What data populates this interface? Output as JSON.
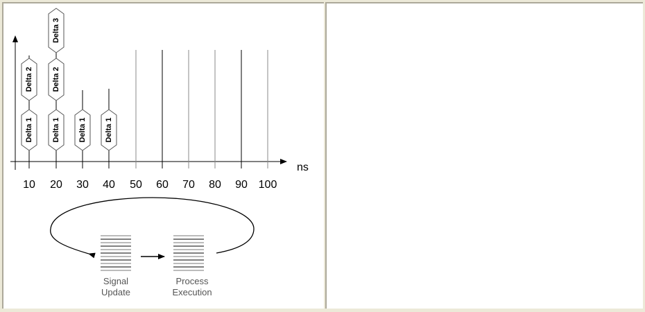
{
  "axis": {
    "unit": "ns",
    "ticks": [
      {
        "label": "10",
        "color": "#000000"
      },
      {
        "label": "20",
        "color": "#000000"
      },
      {
        "label": "30",
        "color": "#000000"
      },
      {
        "label": "40",
        "color": "#000000"
      },
      {
        "label": "50",
        "color": "#888888"
      },
      {
        "label": "60",
        "color": "#000000"
      },
      {
        "label": "70",
        "color": "#888888"
      },
      {
        "label": "80",
        "color": "#888888"
      },
      {
        "label": "90",
        "color": "#000000"
      },
      {
        "label": "100",
        "color": "#888888"
      }
    ]
  },
  "deltas": {
    "10": [
      "Delta 1",
      "Delta 2"
    ],
    "20": [
      "Delta 1",
      "Delta 2",
      "Delta 3"
    ],
    "30": [
      "Delta 1"
    ],
    "40": [
      "Delta 1"
    ]
  },
  "cycle": {
    "signal_update": [
      "Signal",
      "Update"
    ],
    "process_execution": [
      "Process",
      "Execution"
    ]
  }
}
